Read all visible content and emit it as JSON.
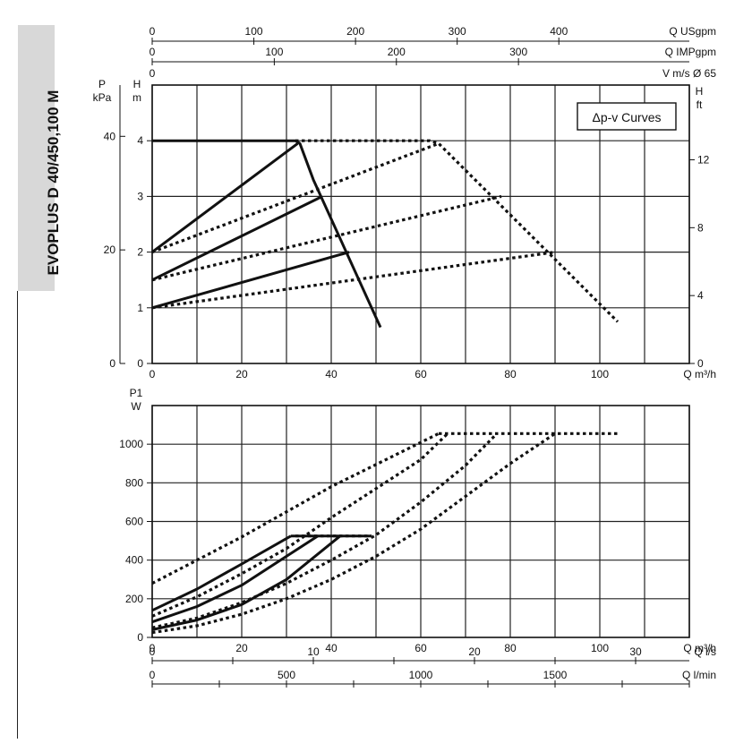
{
  "sidebar": {
    "model_title": "EVOPLUS D 40/450,100 M"
  },
  "legend": {
    "label": "Δp-v Curves"
  },
  "top_scales": [
    {
      "label": "Q USgpm",
      "ticks": [
        0,
        100,
        200,
        300,
        400
      ],
      "factor": 4.4029
    },
    {
      "label": "Q IMPgpm",
      "ticks": [
        0,
        100,
        200,
        300
      ],
      "factor": 3.6662
    },
    {
      "label": "V m/s Ø 65",
      "ticks": [
        0
      ],
      "factor": 1
    }
  ],
  "bottom_scales": [
    {
      "label": "Q l/s",
      "ticks": [
        0,
        10,
        20,
        30
      ],
      "factor": 0.27778
    },
    {
      "label": "Q l/min",
      "ticks": [
        0,
        500,
        1000,
        1500
      ],
      "factor": 16.6667
    }
  ],
  "chart_data": [
    {
      "type": "line",
      "title": "",
      "xlabel": "Q m³/h",
      "ylabel_left_primary": "H m",
      "ylabel_left_secondary": "P kPa",
      "ylabel_right": "H ft",
      "xlim": [
        0,
        120
      ],
      "ylim": [
        0,
        5.0
      ],
      "x_ticks": [
        0,
        20,
        40,
        60,
        80,
        100
      ],
      "x_grid": [
        0,
        10,
        20,
        30,
        40,
        50,
        60,
        70,
        80,
        90,
        100,
        110,
        120
      ],
      "y_ticks": [
        0,
        1,
        2,
        3,
        4
      ],
      "kpa_ticks": [
        0,
        20,
        40
      ],
      "ft_ticks": [
        0,
        4,
        8,
        12
      ],
      "grid": true,
      "series": [
        {
          "style": "solid",
          "x": [
            0,
            32,
            33,
            36,
            51
          ],
          "y": [
            4,
            4,
            3.95,
            3.3,
            0.65
          ]
        },
        {
          "style": "solid",
          "x": [
            0,
            32.5
          ],
          "y": [
            2,
            3.95
          ]
        },
        {
          "style": "solid",
          "x": [
            0,
            38
          ],
          "y": [
            1.5,
            3.0
          ]
        },
        {
          "style": "solid",
          "x": [
            0,
            44
          ],
          "y": [
            1.0,
            2.0
          ]
        },
        {
          "style": "dotted",
          "x": [
            32,
            62,
            64,
            104
          ],
          "y": [
            4,
            4,
            3.95,
            0.75
          ]
        },
        {
          "style": "dotted",
          "x": [
            0,
            64
          ],
          "y": [
            2,
            3.95
          ]
        },
        {
          "style": "dotted",
          "x": [
            0,
            78
          ],
          "y": [
            1.5,
            3.0
          ]
        },
        {
          "style": "dotted",
          "x": [
            0,
            90
          ],
          "y": [
            1.0,
            2.0
          ]
        }
      ]
    },
    {
      "type": "line",
      "title": "",
      "xlabel": "Q m³/h",
      "ylabel": "P1 W",
      "xlim": [
        0,
        120
      ],
      "ylim": [
        0,
        1200
      ],
      "x_ticks": [
        0,
        20,
        40,
        60,
        80,
        100
      ],
      "x_grid": [
        0,
        10,
        20,
        30,
        40,
        50,
        60,
        70,
        80,
        90,
        100,
        110,
        120
      ],
      "y_ticks": [
        0,
        200,
        400,
        600,
        800,
        1000
      ],
      "grid": true,
      "series": [
        {
          "style": "solid",
          "x": [
            0,
            10,
            20,
            31
          ],
          "y": [
            140,
            250,
            380,
            525
          ]
        },
        {
          "style": "solid",
          "x": [
            0,
            10,
            20,
            30,
            37
          ],
          "y": [
            80,
            160,
            270,
            420,
            525
          ]
        },
        {
          "style": "solid",
          "x": [
            0,
            10,
            20,
            30,
            42
          ],
          "y": [
            40,
            90,
            170,
            300,
            525
          ]
        },
        {
          "style": "solid",
          "x": [
            31,
            49
          ],
          "y": [
            525,
            525
          ]
        },
        {
          "style": "dotted",
          "x": [
            0,
            20,
            40,
            64
          ],
          "y": [
            280,
            520,
            780,
            1055
          ]
        },
        {
          "style": "dotted",
          "x": [
            0,
            10,
            20,
            30,
            40,
            60,
            66
          ],
          "y": [
            110,
            210,
            330,
            460,
            620,
            920,
            1055
          ]
        },
        {
          "style": "dotted",
          "x": [
            0,
            10,
            20,
            30,
            40,
            50,
            60,
            70,
            77
          ],
          "y": [
            50,
            100,
            180,
            280,
            400,
            530,
            700,
            890,
            1055
          ]
        },
        {
          "style": "dotted",
          "x": [
            0,
            10,
            20,
            30,
            40,
            50,
            60,
            70,
            80,
            90
          ],
          "y": [
            25,
            60,
            120,
            200,
            300,
            420,
            560,
            730,
            900,
            1055
          ]
        },
        {
          "style": "dotted",
          "x": [
            64,
            104
          ],
          "y": [
            1055,
            1055
          ]
        },
        {
          "style": "dotted",
          "x": [
            32,
            49
          ],
          "y": [
            525,
            525
          ]
        }
      ]
    }
  ]
}
